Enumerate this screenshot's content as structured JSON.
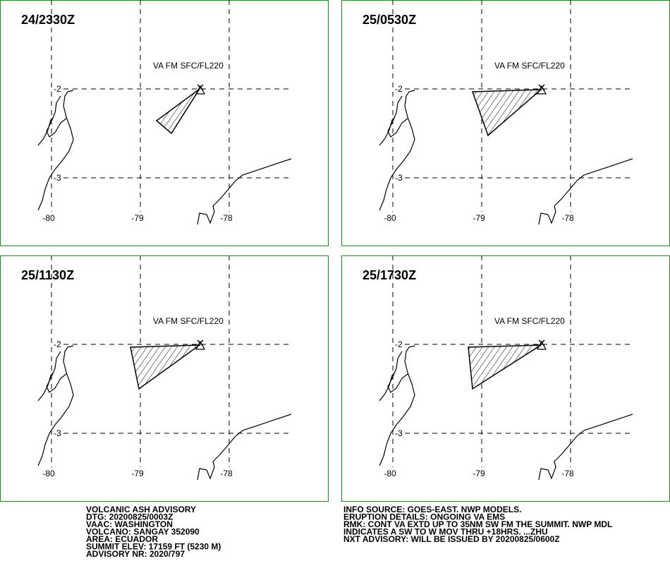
{
  "panels": [
    {
      "time": "24/2330Z",
      "label": "VA FM SFC/FL220"
    },
    {
      "time": "25/0530Z",
      "label": "VA FM SFC/FL220"
    },
    {
      "time": "25/1130Z",
      "label": "VA FM SFC/FL220"
    },
    {
      "time": "25/1730Z",
      "label": "VA FM SFC/FL220"
    }
  ],
  "lon_ticks": [
    -80,
    -79,
    -78
  ],
  "lat_ticks": [
    -2,
    -3
  ],
  "advisory_left": [
    "VOLCANIC ASH ADVISORY",
    "DTG: 20200825/0003Z",
    "VAAC: WASHINGTON",
    "VOLCANO: SANGAY 352090",
    "AREA: ECUADOR",
    "SUMMIT ELEV: 17159 FT (5230 M)",
    "ADVISORY NR: 2020/797"
  ],
  "advisory_right": [
    "INFO SOURCE: GOES-EAST. NWP MODELS.",
    "ERUPTION DETAILS: ONGOING VA EMS",
    "RMK: CONT VA EXTD UP TO 35NM SW FM THE SUMMIT. NWP MDL",
    "INDICATES A SW TO W MOV THRU +18HRS. ...ZHU",
    "NXT ADVISORY: WILL BE ISSUED BY 20200825/0600Z"
  ]
}
